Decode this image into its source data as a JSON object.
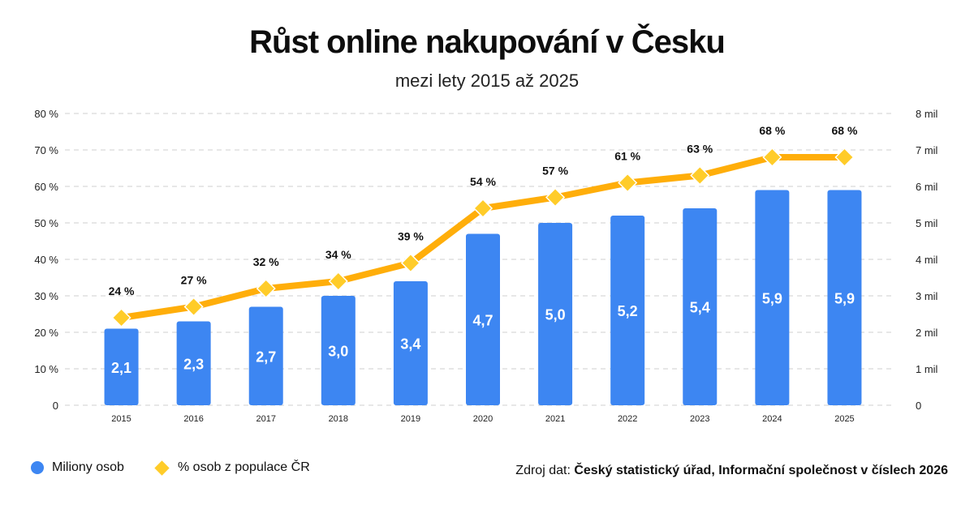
{
  "title": "Růst online nakupování v Česku",
  "subtitle": "mezi lety 2015 až 2025",
  "colors": {
    "bar": "#3d86f2",
    "line": "#ffae0a",
    "marker": "#ffcc29",
    "grid": "#cfcfcf"
  },
  "chart_data": {
    "type": "bar+line",
    "categories": [
      "2015",
      "2016",
      "2017",
      "2018",
      "2019",
      "2020",
      "2021",
      "2022",
      "2023",
      "2024",
      "2025"
    ],
    "series": [
      {
        "name": "Miliony osob",
        "type": "bar",
        "axis": "right",
        "values": [
          2.1,
          2.3,
          2.7,
          3.0,
          3.4,
          4.7,
          5.0,
          5.2,
          5.4,
          5.9,
          5.9
        ],
        "labels": [
          "2,1",
          "2,3",
          "2,7",
          "3,0",
          "3,4",
          "4,7",
          "5,0",
          "5,2",
          "5,4",
          "5,9",
          "5,9"
        ]
      },
      {
        "name": "% osob z populace ČR",
        "type": "line",
        "axis": "left",
        "values": [
          24,
          27,
          32,
          34,
          39,
          54,
          57,
          61,
          63,
          68,
          68
        ],
        "labels": [
          "24 %",
          "27 %",
          "32 %",
          "34 %",
          "39 %",
          "54 %",
          "57 %",
          "61 %",
          "63 %",
          "68 %",
          "68 %"
        ]
      }
    ],
    "left_axis": {
      "ylim": [
        0,
        80
      ],
      "ticks": [
        "0",
        "10 %",
        "20 %",
        "30 %",
        "40 %",
        "50 %",
        "60 %",
        "70 %",
        "80 %"
      ]
    },
    "right_axis": {
      "ylim": [
        0,
        8
      ],
      "ticks": [
        "0",
        "1 mil",
        "2 mil",
        "3 mil",
        "4 mil",
        "5 mil",
        "6 mil",
        "7 mil",
        "8 mil"
      ]
    },
    "grid": true,
    "legend_position": "bottom-left"
  },
  "legend": {
    "bars_label": "Miliony osob",
    "line_label": "% osob z populace ČR"
  },
  "source": {
    "prefix": "Zdroj dat:",
    "text": "Český statistický úřad, Informační společnost v číslech 2026"
  }
}
